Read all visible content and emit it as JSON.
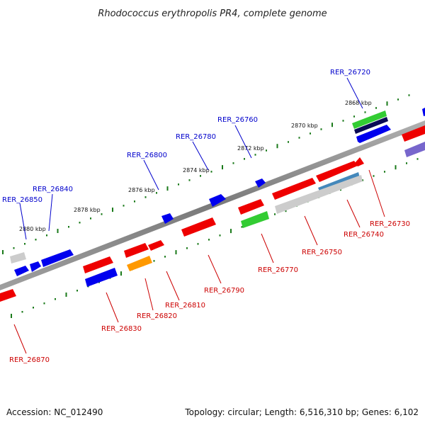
{
  "title": "Rhodococcus erythropolis PR4, complete genome",
  "footer": {
    "accession": "Accession: NC_012490",
    "summary": "Topology: circular; Length: 6,516,310 bp; Genes: 6,102"
  },
  "scale_labels": [
    "2868 kbp",
    "2870 kbp",
    "2872 kbp",
    "2874 kbp",
    "2876 kbp",
    "2878 kbp",
    "2880 kbp"
  ],
  "colors": {
    "backbone": "#888888",
    "forward_label": "#0000cc",
    "reverse_label": "#cc0000",
    "tick": "#1a7a1a"
  },
  "forward_labels": [
    "RER_26720",
    "RER_26760",
    "RER_26780",
    "RER_26800",
    "RER_26840",
    "RER_26850"
  ],
  "reverse_labels": [
    "RER_26730",
    "RER_26740",
    "RER_26750",
    "RER_26770",
    "RER_26790",
    "RER_26810",
    "RER_26820",
    "RER_26830",
    "RER_26870"
  ]
}
